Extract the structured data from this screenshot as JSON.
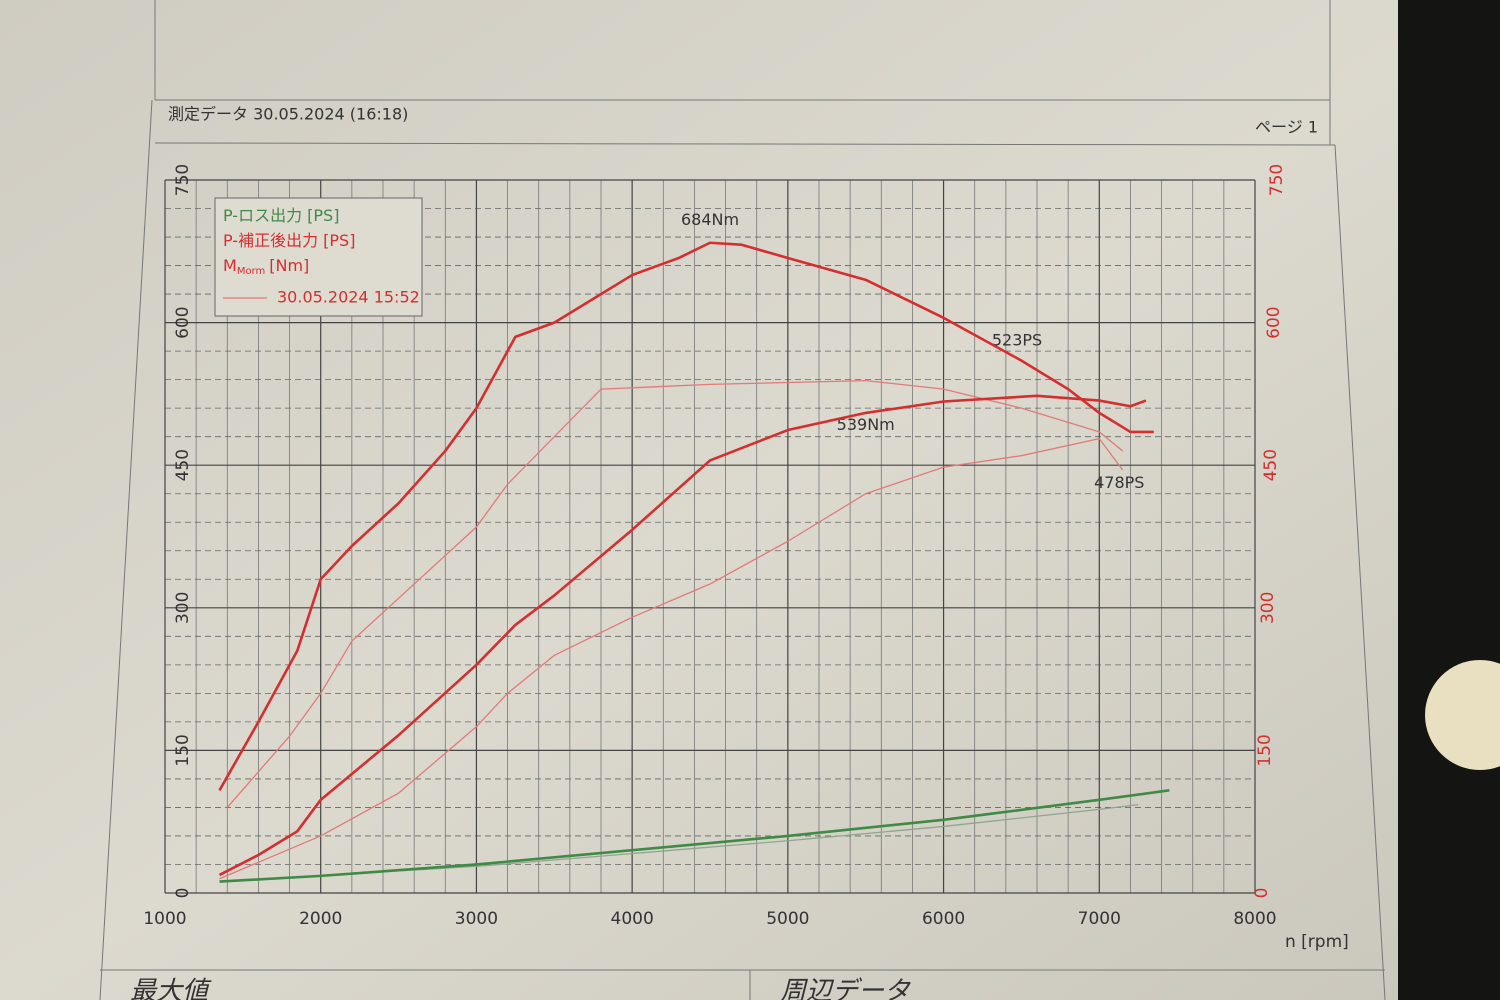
{
  "header": {
    "title": "測定データ 30.05.2024 (16:18)",
    "page": "ページ 1"
  },
  "footer": {
    "left": "最大値",
    "right": "周辺データ"
  },
  "chart_data": {
    "type": "line",
    "x_label": "n [rpm]",
    "xlim": [
      1000,
      8000
    ],
    "xticks": [
      1000,
      2000,
      3000,
      4000,
      5000,
      6000,
      7000,
      8000
    ],
    "ylim": [
      0,
      750
    ],
    "yticks": [
      0,
      150,
      300,
      450,
      600,
      750
    ],
    "y2lim": [
      0,
      750
    ],
    "y2ticks": [
      0,
      150,
      300,
      450,
      600,
      750
    ],
    "grid": true,
    "legend": "top-left",
    "series": [
      {
        "name": "P-ロス出力 [PS]",
        "color": "#3f8a45",
        "x": [
          1350,
          2000,
          3000,
          4000,
          5000,
          6000,
          7000,
          7450
        ],
        "values": [
          12,
          18,
          30,
          45,
          60,
          77,
          98,
          108
        ]
      },
      {
        "name": "P-補正後出力 [PS]",
        "color": "#d32f2f",
        "peak_label": "523PS",
        "x": [
          1350,
          1600,
          1850,
          2000,
          2500,
          3000,
          3250,
          3500,
          4000,
          4500,
          5000,
          5500,
          6000,
          6600,
          7000,
          7200,
          7300
        ],
        "values": [
          19,
          40,
          65,
          98,
          166,
          240,
          282,
          313,
          382,
          455,
          487,
          505,
          517,
          523,
          518,
          512,
          518
        ]
      },
      {
        "name": "M",
        "name_sub": "Morm",
        "name_unit": "[Nm]",
        "color": "#d32f2f",
        "peak_label": "684Nm",
        "x": [
          1350,
          1600,
          1850,
          2000,
          2200,
          2500,
          2800,
          3000,
          3250,
          3500,
          3800,
          4000,
          4300,
          4500,
          4700,
          5000,
          5500,
          6000,
          6500,
          6800,
          7000,
          7200,
          7350
        ],
        "values": [
          108,
          180,
          255,
          330,
          365,
          410,
          465,
          510,
          585,
          600,
          630,
          650,
          668,
          684,
          682,
          668,
          645,
          605,
          560,
          530,
          505,
          485,
          485
        ]
      }
    ],
    "comparison": {
      "name": "30.05.2024 15:52",
      "color": "#e07a7a",
      "series": [
        {
          "color": "#8fa58f",
          "x": [
            1350,
            3000,
            5000,
            6000,
            7000,
            7250
          ],
          "values": [
            12,
            28,
            55,
            70,
            88,
            93
          ]
        },
        {
          "color": "#e07a7a",
          "peak_label": "478PS",
          "x": [
            1350,
            2000,
            2500,
            3000,
            3200,
            3500,
            4000,
            4500,
            5000,
            5500,
            6000,
            6500,
            7000,
            7150
          ],
          "values": [
            15,
            60,
            105,
            175,
            210,
            250,
            290,
            325,
            370,
            420,
            448,
            460,
            478,
            445
          ]
        },
        {
          "color": "#e07a7a",
          "peak_label": "539Nm",
          "x": [
            1400,
            1800,
            2000,
            2200,
            2500,
            3000,
            3200,
            3500,
            3800,
            4500,
            5000,
            5500,
            6000,
            6500,
            7000,
            7150
          ],
          "values": [
            90,
            165,
            210,
            265,
            310,
            385,
            430,
            480,
            530,
            535,
            537,
            539,
            530,
            510,
            485,
            465
          ]
        }
      ]
    }
  }
}
